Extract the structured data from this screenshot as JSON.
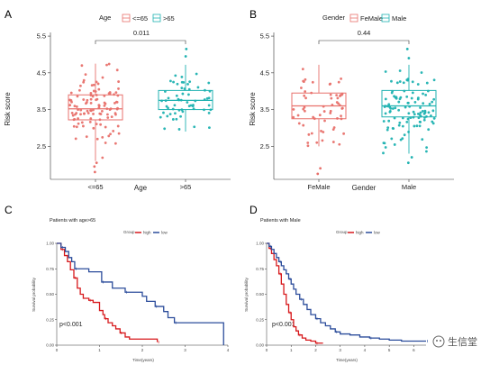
{
  "panels": {
    "a": {
      "letter": "A"
    },
    "b": {
      "letter": "B"
    },
    "c": {
      "letter": "C"
    },
    "d": {
      "letter": "D"
    }
  },
  "watermark": {
    "text": "生信堂"
  },
  "colors": {
    "red": "#e8716c",
    "teal": "#1fb2b1",
    "km_red": "#d7191c",
    "km_blue": "#2b4c9b"
  },
  "chart_data": [
    {
      "id": "A",
      "type": "box",
      "title": "",
      "xlabel": "Age",
      "ylabel": "Risk score",
      "yticks": [
        "2.5",
        "3.5",
        "4.5",
        "5.5"
      ],
      "ylim": [
        1.6,
        5.6
      ],
      "legend_title": "Age",
      "categories": [
        "<=65",
        ">65"
      ],
      "colors": [
        "#e8716c",
        "#1fb2b1"
      ],
      "boxes": [
        {
          "min": 2.1,
          "q1": 3.22,
          "median": 3.52,
          "q3": 3.9,
          "max": 4.75
        },
        {
          "min": 2.9,
          "q1": 3.5,
          "median": 3.75,
          "q3": 4.02,
          "max": 4.72
        }
      ],
      "jitter_n": [
        110,
        60
      ],
      "pvalue": "0.011"
    },
    {
      "id": "B",
      "type": "box",
      "title": "",
      "xlabel": "Gender",
      "ylabel": "Risk score",
      "yticks": [
        "2.5",
        "3.5",
        "4.5",
        "5.5"
      ],
      "ylim": [
        1.6,
        5.6
      ],
      "legend_title": "Gender",
      "categories": [
        "FeMale",
        "Male"
      ],
      "colors": [
        "#e8716c",
        "#1fb2b1"
      ],
      "boxes": [
        {
          "min": 2.5,
          "q1": 3.25,
          "median": 3.6,
          "q3": 3.95,
          "max": 4.72
        },
        {
          "min": 2.3,
          "q1": 3.3,
          "median": 3.6,
          "q3": 4.02,
          "max": 4.72
        }
      ],
      "jitter_n": [
        60,
        110
      ],
      "pvalue": "0.44"
    },
    {
      "id": "C",
      "type": "line",
      "title": "Patients with age>65",
      "xlabel": "Time(years)",
      "ylabel": "Survival probability",
      "xticks": [
        "0",
        "1",
        "2",
        "3",
        "4"
      ],
      "yticks": [
        "0.00",
        "0.25",
        "0.50",
        "0.75",
        "1.00"
      ],
      "xlim": [
        0,
        4
      ],
      "ylim": [
        0,
        1
      ],
      "legend_title": "Group",
      "pvalue": "p<0.001",
      "series": [
        {
          "name": "high",
          "color": "#d7191c",
          "steps": [
            [
              0,
              1
            ],
            [
              0.1,
              0.94
            ],
            [
              0.18,
              0.88
            ],
            [
              0.25,
              0.82
            ],
            [
              0.32,
              0.74
            ],
            [
              0.4,
              0.66
            ],
            [
              0.48,
              0.56
            ],
            [
              0.55,
              0.5
            ],
            [
              0.62,
              0.46
            ],
            [
              0.75,
              0.44
            ],
            [
              0.85,
              0.42
            ],
            [
              1.0,
              0.34
            ],
            [
              1.08,
              0.3
            ],
            [
              1.12,
              0.26
            ],
            [
              1.2,
              0.22
            ],
            [
              1.3,
              0.19
            ],
            [
              1.38,
              0.16
            ],
            [
              1.48,
              0.12
            ],
            [
              1.6,
              0.08
            ],
            [
              1.7,
              0.06
            ],
            [
              2.2,
              0.06
            ],
            [
              2.35,
              0.03
            ]
          ]
        },
        {
          "name": "low",
          "color": "#2b4c9b",
          "steps": [
            [
              0,
              1
            ],
            [
              0.1,
              0.96
            ],
            [
              0.2,
              0.92
            ],
            [
              0.28,
              0.86
            ],
            [
              0.35,
              0.82
            ],
            [
              0.42,
              0.75
            ],
            [
              0.7,
              0.75
            ],
            [
              0.75,
              0.72
            ],
            [
              1.0,
              0.72
            ],
            [
              1.05,
              0.62
            ],
            [
              1.25,
              0.62
            ],
            [
              1.3,
              0.56
            ],
            [
              1.55,
              0.56
            ],
            [
              1.6,
              0.52
            ],
            [
              1.9,
              0.52
            ],
            [
              2.0,
              0.48
            ],
            [
              2.1,
              0.43
            ],
            [
              2.3,
              0.38
            ],
            [
              2.5,
              0.33
            ],
            [
              2.6,
              0.27
            ],
            [
              2.72,
              0.27
            ],
            [
              2.75,
              0.22
            ],
            [
              3.85,
              0.22
            ],
            [
              3.9,
              0.0
            ]
          ]
        }
      ]
    },
    {
      "id": "D",
      "type": "line",
      "title": "Patients with Male",
      "xlabel": "Time(years)",
      "ylabel": "Survival probability",
      "xticks": [
        "0",
        "1",
        "2",
        "3",
        "4",
        "5",
        "6"
      ],
      "yticks": [
        "0.00",
        "0.25",
        "0.50",
        "0.75",
        "1.00"
      ],
      "xlim": [
        0,
        6.5
      ],
      "ylim": [
        0,
        1
      ],
      "legend_title": "Group",
      "pvalue": "p<0.001",
      "series": [
        {
          "name": "high",
          "color": "#d7191c",
          "steps": [
            [
              0,
              1
            ],
            [
              0.1,
              0.95
            ],
            [
              0.2,
              0.9
            ],
            [
              0.3,
              0.84
            ],
            [
              0.4,
              0.78
            ],
            [
              0.5,
              0.7
            ],
            [
              0.6,
              0.6
            ],
            [
              0.7,
              0.5
            ],
            [
              0.8,
              0.4
            ],
            [
              0.9,
              0.32
            ],
            [
              1.0,
              0.25
            ],
            [
              1.1,
              0.18
            ],
            [
              1.2,
              0.14
            ],
            [
              1.3,
              0.1
            ],
            [
              1.45,
              0.07
            ],
            [
              1.6,
              0.05
            ],
            [
              1.8,
              0.04
            ],
            [
              2.0,
              0.02
            ],
            [
              2.3,
              0.02
            ]
          ]
        },
        {
          "name": "low",
          "color": "#2b4c9b",
          "steps": [
            [
              0,
              1
            ],
            [
              0.1,
              0.97
            ],
            [
              0.2,
              0.94
            ],
            [
              0.3,
              0.9
            ],
            [
              0.4,
              0.86
            ],
            [
              0.5,
              0.82
            ],
            [
              0.6,
              0.78
            ],
            [
              0.7,
              0.74
            ],
            [
              0.8,
              0.7
            ],
            [
              0.9,
              0.65
            ],
            [
              1.0,
              0.6
            ],
            [
              1.1,
              0.55
            ],
            [
              1.2,
              0.5
            ],
            [
              1.35,
              0.45
            ],
            [
              1.5,
              0.4
            ],
            [
              1.65,
              0.35
            ],
            [
              1.8,
              0.3
            ],
            [
              2.0,
              0.26
            ],
            [
              2.2,
              0.22
            ],
            [
              2.4,
              0.19
            ],
            [
              2.6,
              0.16
            ],
            [
              2.8,
              0.13
            ],
            [
              3.0,
              0.11
            ],
            [
              3.4,
              0.1
            ],
            [
              3.8,
              0.08
            ],
            [
              4.2,
              0.07
            ],
            [
              4.6,
              0.06
            ],
            [
              5.0,
              0.05
            ],
            [
              5.5,
              0.04
            ],
            [
              6.5,
              0.04
            ]
          ]
        }
      ]
    }
  ]
}
